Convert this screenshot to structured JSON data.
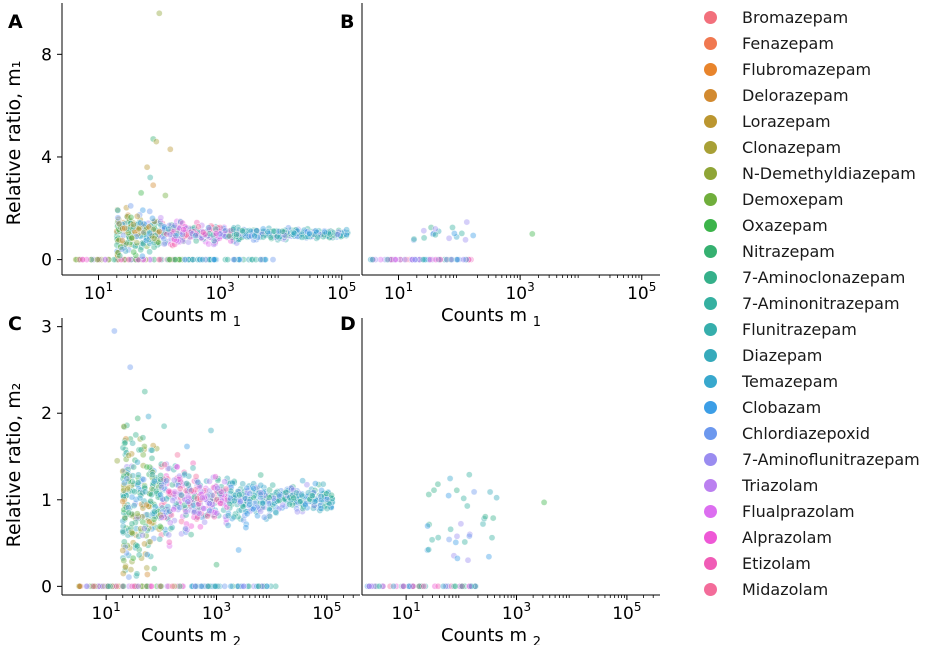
{
  "chart_data": [
    {
      "panel": "A",
      "type": "scatter",
      "xscale": "log",
      "xlim_log10": [
        0.4,
        5.3
      ],
      "ylim": [
        -0.6,
        10
      ],
      "xlabel": "Counts m",
      "xlabel_sub": "1",
      "ylabel": "Relative ratio, m₁",
      "xticks": [
        {
          "base": "10",
          "exp": "1",
          "value": 10
        },
        {
          "base": "10",
          "exp": "3",
          "value": 1000
        },
        {
          "base": "10",
          "exp": "5",
          "value": 100000
        }
      ],
      "yticks": [
        {
          "label": "0",
          "value": 0
        },
        {
          "label": "4",
          "value": 4
        },
        {
          "label": "8",
          "value": 8
        }
      ]
    },
    {
      "panel": "B",
      "type": "scatter",
      "xscale": "log",
      "xlim_log10": [
        0.4,
        5.3
      ],
      "ylim": [
        -0.6,
        10
      ],
      "xlabel": "Counts m",
      "xlabel_sub": "1",
      "ylabel": "",
      "xticks": [
        {
          "base": "10",
          "exp": "1",
          "value": 10
        },
        {
          "base": "10",
          "exp": "3",
          "value": 1000
        },
        {
          "base": "10",
          "exp": "5",
          "value": 100000
        }
      ],
      "yticks": []
    },
    {
      "panel": "C",
      "type": "scatter",
      "xscale": "log",
      "xlim_log10": [
        0.2,
        5.6
      ],
      "ylim": [
        -0.1,
        3.1
      ],
      "xlabel": "Counts m",
      "xlabel_sub": "2",
      "ylabel": "Relative ratio, m₂",
      "xticks": [
        {
          "base": "10",
          "exp": "1",
          "value": 10
        },
        {
          "base": "10",
          "exp": "3",
          "value": 1000
        },
        {
          "base": "10",
          "exp": "5",
          "value": 100000
        }
      ],
      "yticks": [
        {
          "label": "0",
          "value": 0
        },
        {
          "label": "1",
          "value": 1
        },
        {
          "label": "2",
          "value": 2
        },
        {
          "label": "3",
          "value": 3
        }
      ]
    },
    {
      "panel": "D",
      "type": "scatter",
      "xscale": "log",
      "xlim_log10": [
        0.2,
        5.6
      ],
      "ylim": [
        -0.1,
        3.1
      ],
      "xlabel": "Counts m",
      "xlabel_sub": "2",
      "ylabel": "",
      "xticks": [
        {
          "base": "10",
          "exp": "1",
          "value": 10
        },
        {
          "base": "10",
          "exp": "3",
          "value": 1000
        },
        {
          "base": "10",
          "exp": "5",
          "value": 100000
        }
      ],
      "yticks": []
    }
  ],
  "legend": [
    {
      "name": "Bromazepam",
      "color": "#f2707c"
    },
    {
      "name": "Fenazepam",
      "color": "#f07850"
    },
    {
      "name": "Flubromazepam",
      "color": "#e8842c"
    },
    {
      "name": "Delorazepam",
      "color": "#d28a30"
    },
    {
      "name": "Lorazepam",
      "color": "#bb9630"
    },
    {
      "name": "Clonazepam",
      "color": "#a8a036"
    },
    {
      "name": "N-Demethyldiazepam",
      "color": "#8fa536"
    },
    {
      "name": "Demoxepam",
      "color": "#70ae3c"
    },
    {
      "name": "Oxazepam",
      "color": "#3cb44a"
    },
    {
      "name": "Nitrazepam",
      "color": "#35b070"
    },
    {
      "name": "7-Aminoclonazepam",
      "color": "#35b08a"
    },
    {
      "name": "7-Aminonitrazepam",
      "color": "#35b0a0"
    },
    {
      "name": "Flunitrazepam",
      "color": "#36aeac"
    },
    {
      "name": "Diazepam",
      "color": "#36aabb"
    },
    {
      "name": "Temazepam",
      "color": "#38a8cd"
    },
    {
      "name": "Clobazam",
      "color": "#3c9ee6"
    },
    {
      "name": "Chlordiazepoxid",
      "color": "#6c98ee"
    },
    {
      "name": "7-Aminoflunitrazepam",
      "color": "#9a8cf0"
    },
    {
      "name": "Triazolam",
      "color": "#bb80f0"
    },
    {
      "name": "Flualprazolam",
      "color": "#dc6ef0"
    },
    {
      "name": "Alprazolam",
      "color": "#ee58d6"
    },
    {
      "name": "Etizolam",
      "color": "#f05cb6"
    },
    {
      "name": "Midazolam",
      "color": "#f36c9a"
    }
  ],
  "panel_labels": [
    "A",
    "B",
    "C",
    "D"
  ]
}
